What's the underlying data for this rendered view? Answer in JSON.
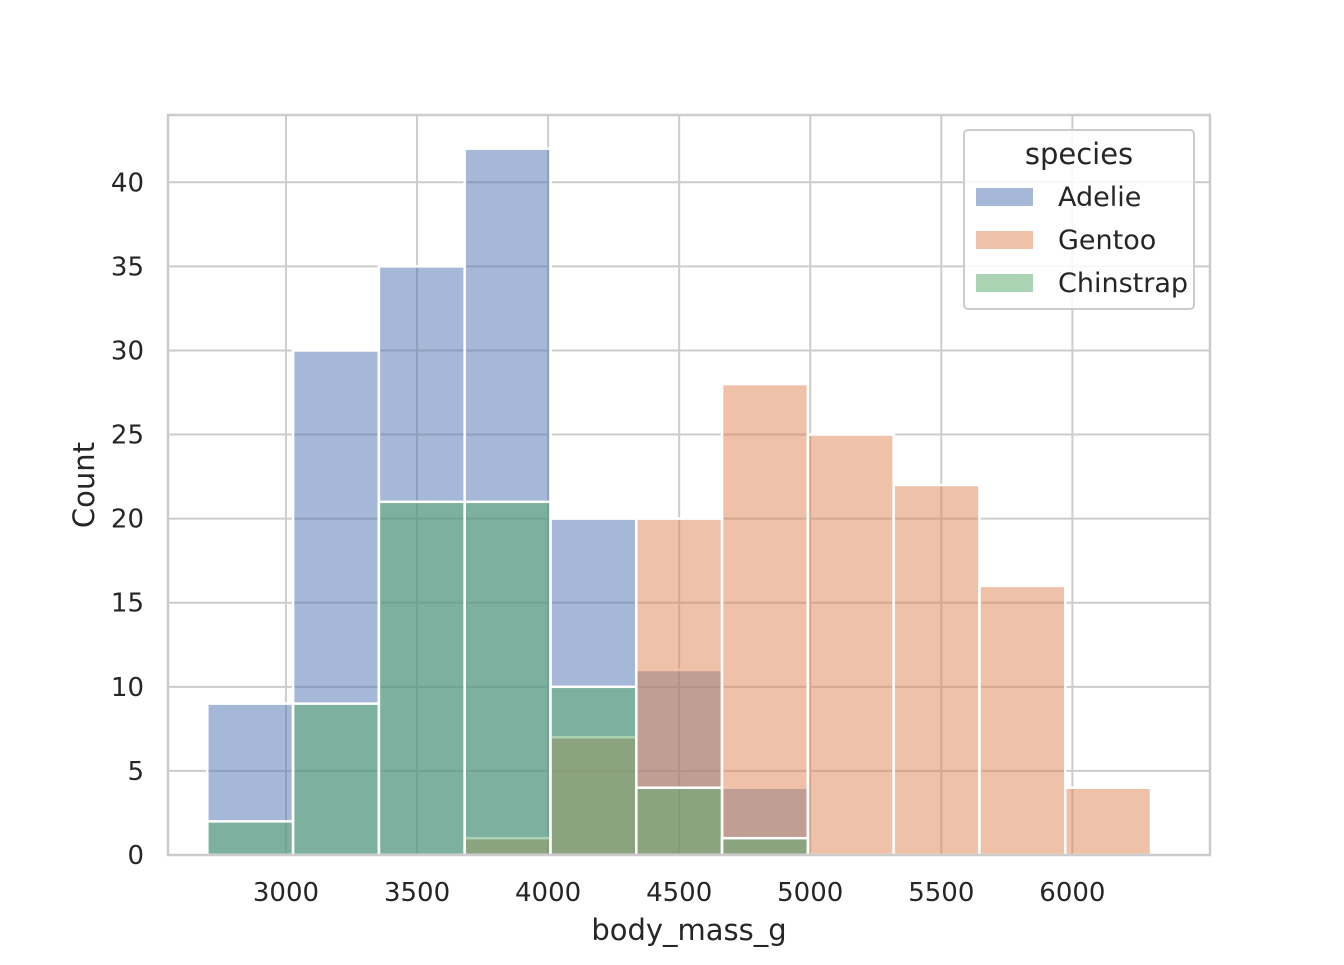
{
  "chart_data": {
    "type": "bar",
    "subtype": "overlaid-histogram",
    "title": "",
    "xlabel": "body_mass_g",
    "ylabel": "Count",
    "xlim": [
      2550,
      6525
    ],
    "ylim": [
      0,
      44
    ],
    "xticks": [
      3000,
      3500,
      4000,
      4500,
      5000,
      5500,
      6000
    ],
    "yticks": [
      0,
      5,
      10,
      15,
      20,
      25,
      30,
      35,
      40
    ],
    "grid": true,
    "legend": {
      "title": "species",
      "placement": "top-right"
    },
    "bin_edges": [
      2700,
      3027.3,
      3354.5,
      3681.8,
      4009.1,
      4336.4,
      4663.6,
      4990.9,
      5318.2,
      5645.5,
      5972.7,
      6300
    ],
    "series": [
      {
        "name": "Adelie",
        "color": "#4c72b0",
        "counts": [
          9,
          30,
          35,
          42,
          20,
          11,
          4,
          0,
          0,
          0,
          0
        ]
      },
      {
        "name": "Gentoo",
        "color": "#dd8452",
        "counts": [
          0,
          0,
          0,
          1,
          7,
          20,
          28,
          25,
          22,
          16,
          4
        ]
      },
      {
        "name": "Chinstrap",
        "color": "#55a868",
        "counts": [
          2,
          9,
          21,
          21,
          10,
          4,
          1,
          0,
          0,
          0,
          0
        ]
      }
    ]
  }
}
